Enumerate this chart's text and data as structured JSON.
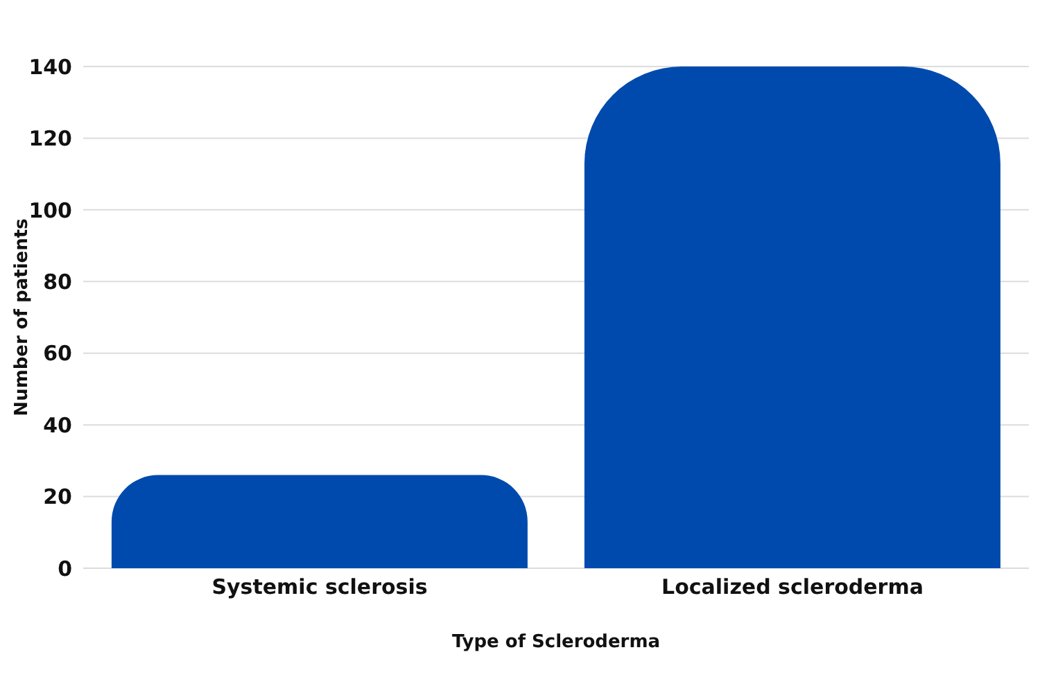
{
  "chart_data": {
    "type": "bar",
    "xlabel": "Type of Scleroderma",
    "ylabel": "Number of patients",
    "categories": [
      "Systemic sclerosis",
      "Localized scleroderma"
    ],
    "values": [
      26,
      140
    ],
    "color": "#004aad",
    "ylim": [
      0,
      140
    ],
    "yticks": [
      0,
      20,
      40,
      60,
      80,
      100,
      120,
      140
    ],
    "grid": "y"
  }
}
